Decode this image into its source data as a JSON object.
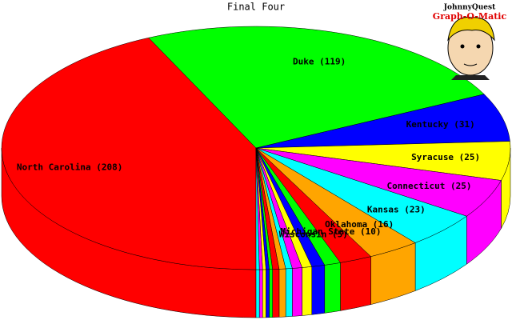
{
  "chart_data": {
    "type": "pie",
    "title": "Final Four",
    "labels": [
      "North Carolina (208)",
      "Duke (119)",
      "Kentucky (31)",
      "Syracuse (25)",
      "Connecticut (25)",
      "Kansas (23)",
      "Oklahoma (16)",
      "Michigan State (10)",
      "Wisconsin (5)",
      null,
      null,
      null,
      null,
      null,
      null,
      null,
      null,
      null,
      null,
      null
    ],
    "values": [
      208,
      119,
      31,
      25,
      25,
      23,
      16,
      10,
      5,
      4,
      3,
      3,
      2,
      2,
      2,
      1,
      1,
      1,
      1,
      1
    ],
    "colors": [
      "#ff0000",
      "#00ff00",
      "#0000ff",
      "#ffff00",
      "#ff00ff",
      "#00ffff",
      "#ffa500"
    ]
  },
  "logo": {
    "line1": "JohnnyQuest",
    "line2": "Graph-O-Matic"
  }
}
